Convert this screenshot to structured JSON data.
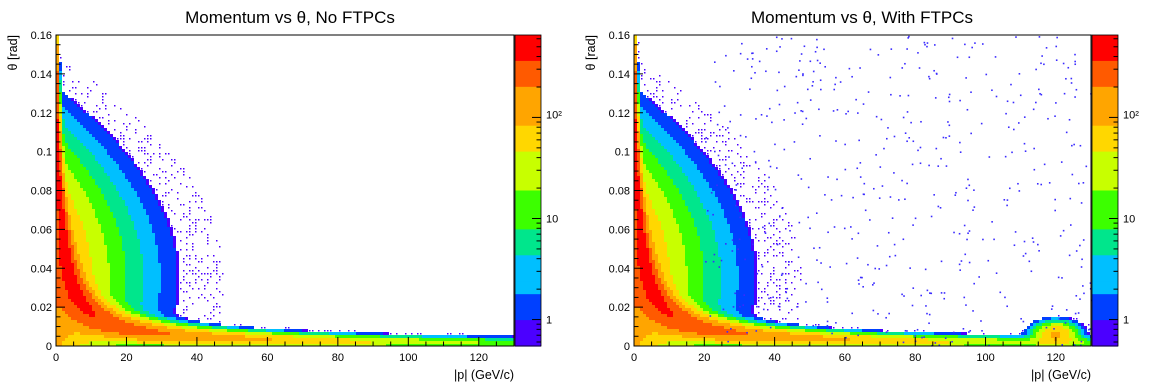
{
  "chart_data": [
    {
      "type": "heatmap",
      "title": "Momentum vs θ, No FTPCs",
      "xlabel": "|p| (GeV/c)",
      "ylabel": "θ [rad]",
      "xlim": [
        0,
        130
      ],
      "ylim": [
        0,
        0.16
      ],
      "x_ticks": [
        0,
        20,
        40,
        60,
        80,
        100,
        120
      ],
      "y_ticks": [
        0,
        0.02,
        0.04,
        0.06,
        0.08,
        0.1,
        0.12,
        0.14,
        0.16
      ],
      "z_scale": "log",
      "z_ticks": [
        "1",
        "10",
        "10²"
      ],
      "colormap": [
        "#ff0000",
        "#ff5a00",
        "#ffa500",
        "#ffd700",
        "#c8ff00",
        "#3cff00",
        "#00e68c",
        "#00bfff",
        "#0040ff",
        "#4b00ff"
      ],
      "distribution": "band θ ≈ 0.2/(p+1.5); dense red core at low p and small θ; sparse blue tail to p ≈ 130",
      "sparse_outliers": false
    },
    {
      "type": "heatmap",
      "title": "Momentum vs θ, With FTPCs",
      "xlabel": "|p| (GeV/c)",
      "ylabel": "θ [rad]",
      "xlim": [
        0,
        130
      ],
      "ylim": [
        0,
        0.16
      ],
      "x_ticks": [
        0,
        20,
        40,
        60,
        80,
        100,
        120
      ],
      "y_ticks": [
        0,
        0.02,
        0.04,
        0.06,
        0.08,
        0.1,
        0.12,
        0.14,
        0.16
      ],
      "z_scale": "log",
      "z_ticks": [
        "1",
        "10",
        "10²"
      ],
      "colormap": [
        "#ff0000",
        "#ff5a00",
        "#ffa500",
        "#ffd700",
        "#c8ff00",
        "#3cff00",
        "#00e68c",
        "#00bfff",
        "#0040ff",
        "#4b00ff"
      ],
      "distribution": "same band as left plus a hot spot near p ≈ 120, θ ≈ 0.005, and sparse scattered points across the whole plane",
      "sparse_outliers": true
    }
  ]
}
